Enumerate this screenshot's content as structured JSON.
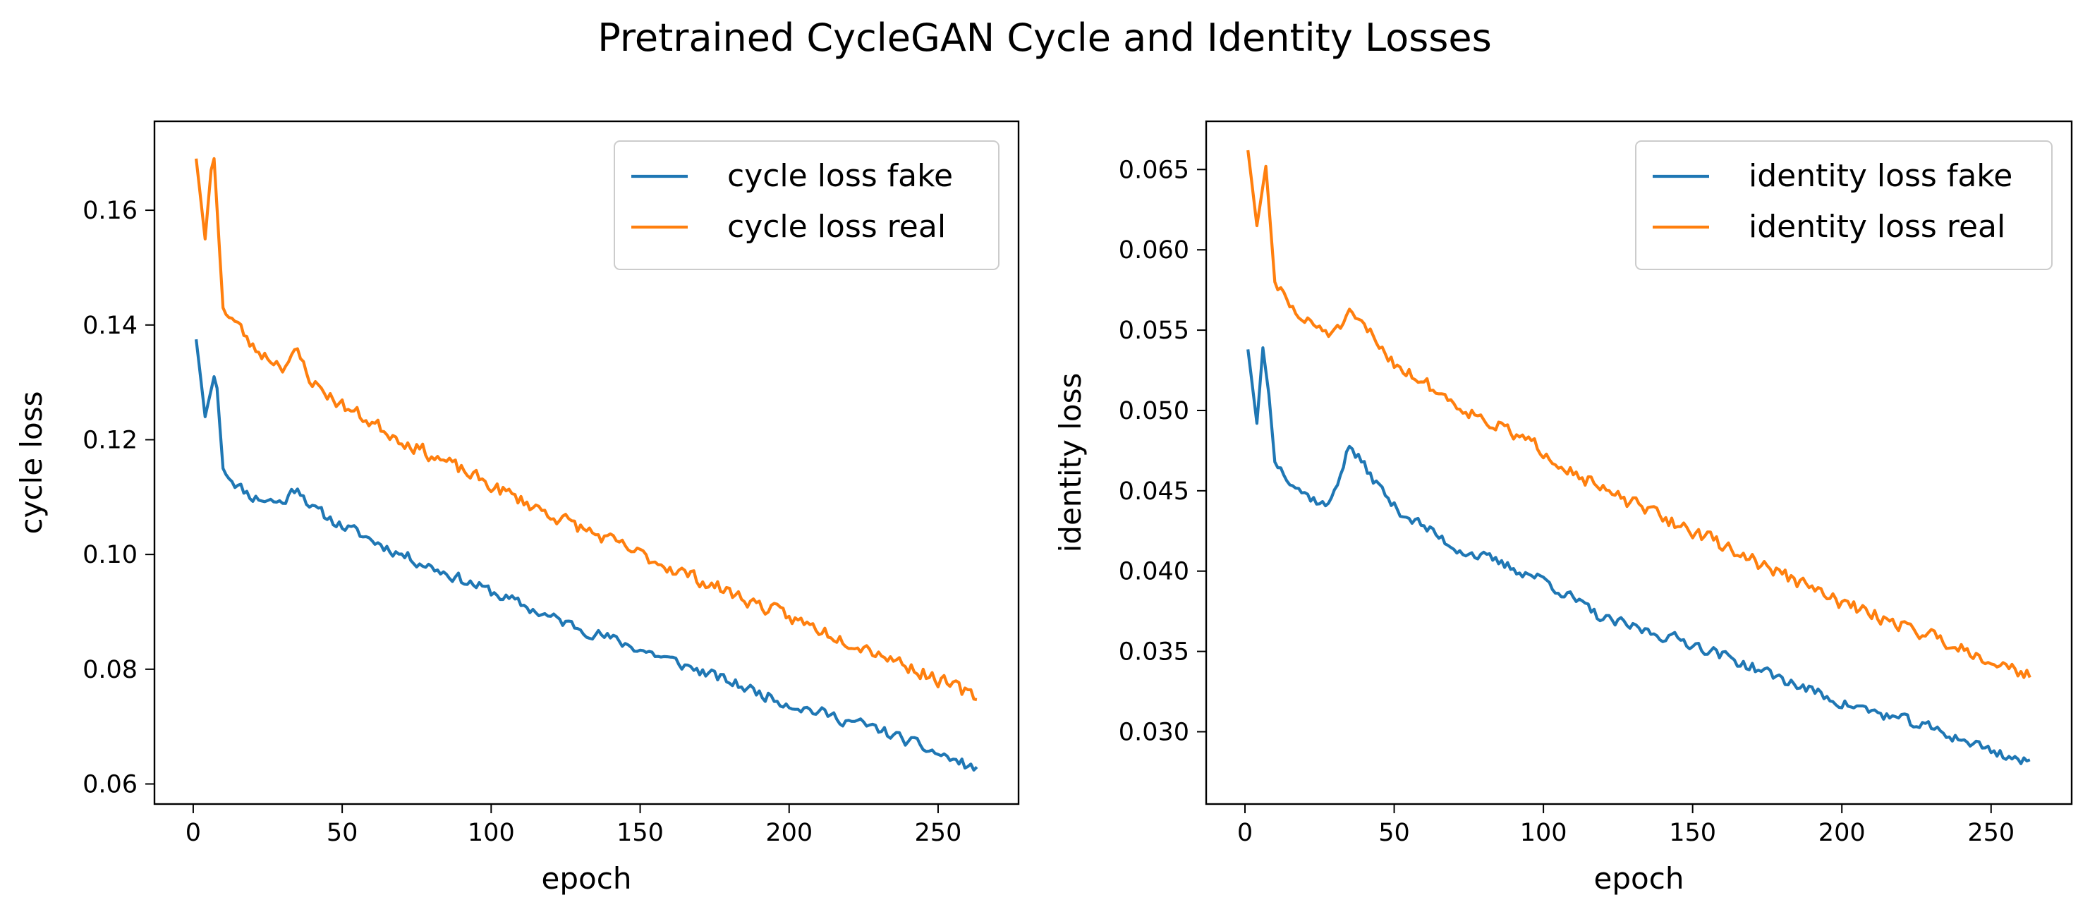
{
  "figure": {
    "title": "Pretrained CycleGAN Cycle and Identity Losses"
  },
  "colors": {
    "fake": "#1f77b4",
    "real": "#ff7f0e"
  },
  "chart_data": [
    {
      "type": "line",
      "xlabel": "epoch",
      "ylabel": "cycle loss",
      "xlim": [
        -13,
        277
      ],
      "ylim": [
        0.0565,
        0.1755
      ],
      "xticks": [
        0,
        50,
        100,
        150,
        200,
        250
      ],
      "yticks": [
        0.06,
        0.08,
        0.1,
        0.12,
        0.14,
        0.16
      ],
      "ytick_labels": [
        "0.06",
        "0.08",
        "0.10",
        "0.12",
        "0.14",
        "0.16"
      ],
      "grid": false,
      "legend": "upper right",
      "x_range": [
        1,
        263
      ],
      "series": [
        {
          "name": "cycle loss fake",
          "color": "#1f77b4",
          "keypoints": [
            [
              1,
              0.1375
            ],
            [
              4,
              0.124
            ],
            [
              7,
              0.131
            ],
            [
              8,
              0.129
            ],
            [
              10,
              0.115
            ],
            [
              15,
              0.112
            ],
            [
              20,
              0.11
            ],
            [
              30,
              0.109
            ],
            [
              35,
              0.112
            ],
            [
              40,
              0.108
            ],
            [
              50,
              0.105
            ],
            [
              70,
              0.1
            ],
            [
              100,
              0.0935
            ],
            [
              120,
              0.089
            ],
            [
              150,
              0.0835
            ],
            [
              200,
              0.074
            ],
            [
              230,
              0.0695
            ],
            [
              263,
              0.0625
            ]
          ],
          "noise": 0.0014,
          "seed": 11
        },
        {
          "name": "cycle loss real",
          "color": "#ff7f0e",
          "keypoints": [
            [
              1,
              0.169
            ],
            [
              4,
              0.155
            ],
            [
              6,
              0.167
            ],
            [
              7,
              0.169
            ],
            [
              10,
              0.143
            ],
            [
              15,
              0.14
            ],
            [
              20,
              0.136
            ],
            [
              30,
              0.133
            ],
            [
              35,
              0.135
            ],
            [
              40,
              0.13
            ],
            [
              50,
              0.126
            ],
            [
              70,
              0.12
            ],
            [
              100,
              0.112
            ],
            [
              120,
              0.107
            ],
            [
              150,
              0.1
            ],
            [
              200,
              0.089
            ],
            [
              230,
              0.083
            ],
            [
              263,
              0.075
            ]
          ],
          "noise": 0.0017,
          "seed": 23
        }
      ]
    },
    {
      "type": "line",
      "xlabel": "epoch",
      "ylabel": "identity loss",
      "xlim": [
        -13,
        277
      ],
      "ylim": [
        0.0255,
        0.068
      ],
      "xticks": [
        0,
        50,
        100,
        150,
        200,
        250
      ],
      "yticks": [
        0.03,
        0.035,
        0.04,
        0.045,
        0.05,
        0.055,
        0.06,
        0.065
      ],
      "ytick_labels": [
        "0.030",
        "0.035",
        "0.040",
        "0.045",
        "0.050",
        "0.055",
        "0.060",
        "0.065"
      ],
      "grid": false,
      "legend": "upper right",
      "x_range": [
        1,
        263
      ],
      "series": [
        {
          "name": "identity loss fake",
          "color": "#1f77b4",
          "keypoints": [
            [
              1,
              0.0538
            ],
            [
              4,
              0.0492
            ],
            [
              6,
              0.0539
            ],
            [
              8,
              0.051
            ],
            [
              10,
              0.0468
            ],
            [
              15,
              0.0458
            ],
            [
              20,
              0.0448
            ],
            [
              28,
              0.044
            ],
            [
              35,
              0.0478
            ],
            [
              40,
              0.0465
            ],
            [
              50,
              0.044
            ],
            [
              70,
              0.0415
            ],
            [
              100,
              0.0395
            ],
            [
              120,
              0.037
            ],
            [
              150,
              0.0355
            ],
            [
              200,
              0.0318
            ],
            [
              230,
              0.0302
            ],
            [
              263,
              0.028
            ]
          ],
          "noise": 0.0005,
          "seed": 37
        },
        {
          "name": "identity loss real",
          "color": "#ff7f0e",
          "keypoints": [
            [
              1,
              0.0662
            ],
            [
              4,
              0.0615
            ],
            [
              7,
              0.0652
            ],
            [
              10,
              0.058
            ],
            [
              15,
              0.0565
            ],
            [
              20,
              0.0555
            ],
            [
              30,
              0.0548
            ],
            [
              35,
              0.0558
            ],
            [
              40,
              0.0552
            ],
            [
              50,
              0.053
            ],
            [
              70,
              0.0505
            ],
            [
              100,
              0.0475
            ],
            [
              120,
              0.045
            ],
            [
              150,
              0.0425
            ],
            [
              200,
              0.038
            ],
            [
              230,
              0.036
            ],
            [
              263,
              0.0335
            ]
          ],
          "noise": 0.0006,
          "seed": 51
        }
      ]
    }
  ]
}
